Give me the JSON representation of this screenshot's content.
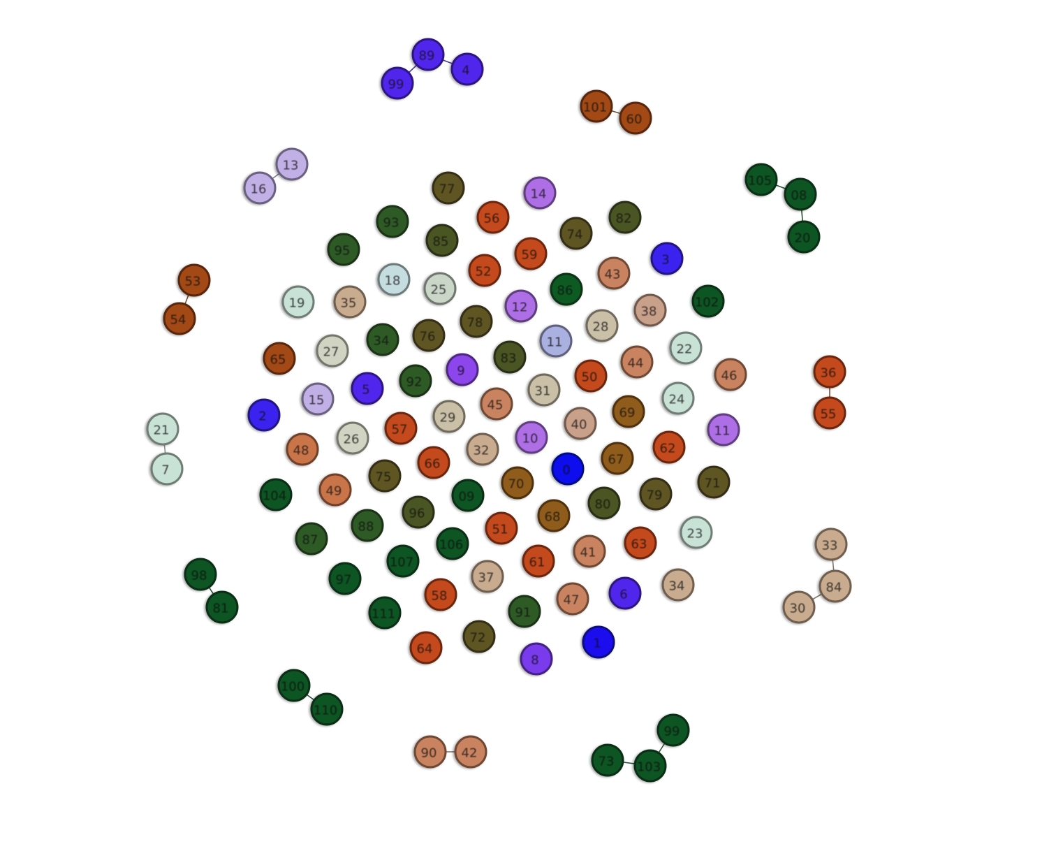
{
  "graph": {
    "nodes": [
      {
        "label": "89",
        "color": "#5125ec"
      },
      {
        "label": "4",
        "color": "#5125ec"
      },
      {
        "label": "99",
        "color": "#5125ec"
      },
      {
        "label": "101",
        "color": "#a24817"
      },
      {
        "label": "60",
        "color": "#a24817"
      },
      {
        "label": "13",
        "color": "#c1b0e6"
      },
      {
        "label": "16",
        "color": "#c1b0e6"
      },
      {
        "label": "105",
        "color": "#0c5523"
      },
      {
        "label": "08",
        "color": "#0c5523"
      },
      {
        "label": "20",
        "color": "#0c5523"
      },
      {
        "label": "53",
        "color": "#a24817"
      },
      {
        "label": "54",
        "color": "#a24817"
      },
      {
        "label": "36",
        "color": "#c4491f"
      },
      {
        "label": "55",
        "color": "#c4491f"
      },
      {
        "label": "21",
        "color": "#c9e2d6"
      },
      {
        "label": "7",
        "color": "#c9e2d6"
      },
      {
        "label": "98",
        "color": "#0c5523"
      },
      {
        "label": "81",
        "color": "#0c5523"
      },
      {
        "label": "33",
        "color": "#c9ab8f"
      },
      {
        "label": "84",
        "color": "#c9ab8f"
      },
      {
        "label": "30",
        "color": "#c9ab8f"
      },
      {
        "label": "100",
        "color": "#0c5523"
      },
      {
        "label": "110",
        "color": "#0c5523"
      },
      {
        "label": "90",
        "color": "#c98360"
      },
      {
        "label": "42",
        "color": "#c98360"
      },
      {
        "label": "99",
        "color": "#0c5523"
      },
      {
        "label": "73",
        "color": "#0c5523"
      },
      {
        "label": "103",
        "color": "#0c5523"
      },
      {
        "label": "77",
        "color": "#5f5524"
      },
      {
        "label": "14",
        "color": "#ae6ee6"
      },
      {
        "label": "93",
        "color": "#2f5a26"
      },
      {
        "label": "56",
        "color": "#c4491f"
      },
      {
        "label": "82",
        "color": "#4a5423"
      },
      {
        "label": "95",
        "color": "#2f5a26"
      },
      {
        "label": "85",
        "color": "#4a5423"
      },
      {
        "label": "74",
        "color": "#5f5524"
      },
      {
        "label": "3",
        "color": "#3b22ee"
      },
      {
        "label": "52",
        "color": "#c4491f"
      },
      {
        "label": "59",
        "color": "#c4491f"
      },
      {
        "label": "43",
        "color": "#c98360"
      },
      {
        "label": "18",
        "color": "#c6dde0"
      },
      {
        "label": "25",
        "color": "#c9d6c8"
      },
      {
        "label": "86",
        "color": "#0f5a23"
      },
      {
        "label": "19",
        "color": "#c9e2d6"
      },
      {
        "label": "35",
        "color": "#c9ab8f"
      },
      {
        "label": "12",
        "color": "#ae6ee6"
      },
      {
        "label": "38",
        "color": "#c9a08a"
      },
      {
        "label": "102",
        "color": "#0c5523"
      },
      {
        "label": "78",
        "color": "#5f5524"
      },
      {
        "label": "28",
        "color": "#cac0a8"
      },
      {
        "label": "34",
        "color": "#2f5a26"
      },
      {
        "label": "76",
        "color": "#5f5524"
      },
      {
        "label": "11",
        "color": "#aab0e0"
      },
      {
        "label": "22",
        "color": "#c9e2d6"
      },
      {
        "label": "65",
        "color": "#a24817"
      },
      {
        "label": "27",
        "color": "#d2d4c3"
      },
      {
        "label": "83",
        "color": "#4a5423"
      },
      {
        "label": "44",
        "color": "#c98360"
      },
      {
        "label": "46",
        "color": "#c98360"
      },
      {
        "label": "9",
        "color": "#8d45ec"
      },
      {
        "label": "50",
        "color": "#c4491f"
      },
      {
        "label": "5",
        "color": "#5125ec"
      },
      {
        "label": "92",
        "color": "#2f5a26"
      },
      {
        "label": "31",
        "color": "#cac0a8"
      },
      {
        "label": "15",
        "color": "#c1b0e6"
      },
      {
        "label": "2",
        "color": "#3b22ee"
      },
      {
        "label": "24",
        "color": "#c9e2d6"
      },
      {
        "label": "45",
        "color": "#c98360"
      },
      {
        "label": "69",
        "color": "#8f5b1c"
      },
      {
        "label": "29",
        "color": "#cac0a8"
      },
      {
        "label": "57",
        "color": "#c4491f"
      },
      {
        "label": "40",
        "color": "#c9a08a"
      },
      {
        "label": "11",
        "color": "#ae6ee6"
      },
      {
        "label": "26",
        "color": "#d2d4c3"
      },
      {
        "label": "10",
        "color": "#ae6ee6"
      },
      {
        "label": "48",
        "color": "#c9744a"
      },
      {
        "label": "62",
        "color": "#c4491f"
      },
      {
        "label": "32",
        "color": "#c9ab8f"
      },
      {
        "label": "67",
        "color": "#8f5b1c"
      },
      {
        "label": "66",
        "color": "#c4491f"
      },
      {
        "label": "0",
        "color": "#0a10ee"
      },
      {
        "label": "75",
        "color": "#5f5524"
      },
      {
        "label": "71",
        "color": "#5f5524"
      },
      {
        "label": "104",
        "color": "#0c5523"
      },
      {
        "label": "49",
        "color": "#c9744a"
      },
      {
        "label": "09",
        "color": "#0c5523"
      },
      {
        "label": "70",
        "color": "#8f5b1c"
      },
      {
        "label": "80",
        "color": "#4a5423"
      },
      {
        "label": "79",
        "color": "#5f5524"
      },
      {
        "label": "96",
        "color": "#4a5423"
      },
      {
        "label": "68",
        "color": "#8f5b1c"
      },
      {
        "label": "23",
        "color": "#c9e2d6"
      },
      {
        "label": "87",
        "color": "#2f5a26"
      },
      {
        "label": "88",
        "color": "#2f5a26"
      },
      {
        "label": "51",
        "color": "#c4491f"
      },
      {
        "label": "106",
        "color": "#0c5523"
      },
      {
        "label": "41",
        "color": "#c98360"
      },
      {
        "label": "63",
        "color": "#c4491f"
      },
      {
        "label": "97",
        "color": "#0c5523"
      },
      {
        "label": "107",
        "color": "#0c5523"
      },
      {
        "label": "37",
        "color": "#c9ab8f"
      },
      {
        "label": "61",
        "color": "#c4491f"
      },
      {
        "label": "34",
        "color": "#c9ab8f"
      },
      {
        "label": "6",
        "color": "#5125ec"
      },
      {
        "label": "58",
        "color": "#c4491f"
      },
      {
        "label": "47",
        "color": "#c98360"
      },
      {
        "label": "111",
        "color": "#0c5523"
      },
      {
        "label": "91",
        "color": "#2f5a26"
      },
      {
        "label": "72",
        "color": "#5f5524"
      },
      {
        "label": "64",
        "color": "#c4491f"
      },
      {
        "label": "1",
        "color": "#1a10ee"
      },
      {
        "label": "8",
        "color": "#7a3aec"
      }
    ],
    "edges": [
      [
        "89",
        "4"
      ],
      [
        "89",
        "99"
      ],
      [
        "101",
        "60"
      ],
      [
        "13",
        "16"
      ],
      [
        "105",
        "08"
      ],
      [
        "08",
        "20"
      ],
      [
        "53",
        "54"
      ],
      [
        "36",
        "55"
      ],
      [
        "21",
        "7"
      ],
      [
        "98",
        "81"
      ],
      [
        "33",
        "84"
      ],
      [
        "84",
        "30"
      ],
      [
        "100",
        "110"
      ],
      [
        "90",
        "42"
      ],
      [
        "99b",
        "103"
      ],
      [
        "73",
        "103"
      ]
    ]
  }
}
